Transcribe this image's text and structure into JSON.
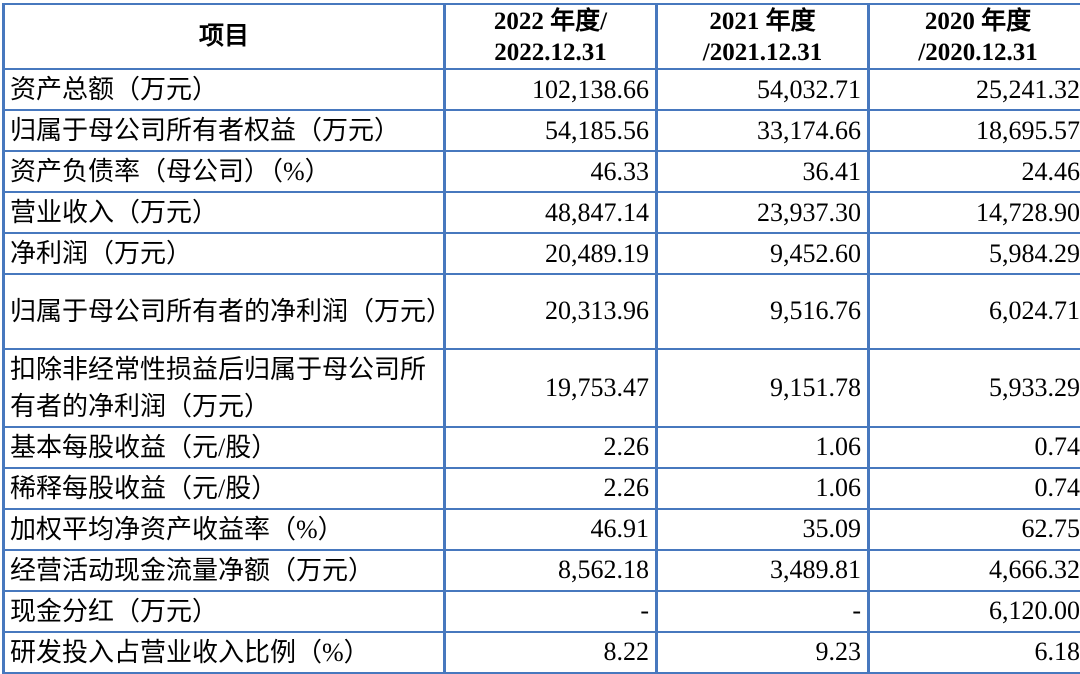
{
  "table": {
    "border_color": "#4778BE",
    "text_color": "#000000",
    "header": {
      "item": "项目",
      "periods": [
        {
          "line1": "2022 年度/",
          "line2": "2022.12.31"
        },
        {
          "line1": "2021 年度",
          "line2": "/2021.12.31"
        },
        {
          "line1": "2020 年度",
          "line2": "/2020.12.31"
        }
      ]
    },
    "rows": [
      {
        "label": "资产总额（万元）",
        "v2022": "102,138.66",
        "v2021": "54,032.71",
        "v2020": "25,241.32"
      },
      {
        "label": "归属于母公司所有者权益（万元）",
        "v2022": "54,185.56",
        "v2021": "33,174.66",
        "v2020": "18,695.57"
      },
      {
        "label": "资产负债率（母公司）（%）",
        "v2022": "46.33",
        "v2021": "36.41",
        "v2020": "24.46"
      },
      {
        "label": "营业收入（万元）",
        "v2022": "48,847.14",
        "v2021": "23,937.30",
        "v2020": "14,728.90"
      },
      {
        "label": "净利润（万元）",
        "v2022": "20,489.19",
        "v2021": "9,452.60",
        "v2020": "5,984.29"
      },
      {
        "label": "归属于母公司所有者的净利润（万元）",
        "v2022": "20,313.96",
        "v2021": "9,516.76",
        "v2020": "6,024.71"
      },
      {
        "label": "扣除非经常性损益后归属于母公司所有者的净利润（万元）",
        "v2022": "19,753.47",
        "v2021": "9,151.78",
        "v2020": "5,933.29"
      },
      {
        "label": "基本每股收益（元/股）",
        "v2022": "2.26",
        "v2021": "1.06",
        "v2020": "0.74"
      },
      {
        "label": "稀释每股收益（元/股）",
        "v2022": "2.26",
        "v2021": "1.06",
        "v2020": "0.74"
      },
      {
        "label": "加权平均净资产收益率（%）",
        "v2022": "46.91",
        "v2021": "35.09",
        "v2020": "62.75"
      },
      {
        "label": "经营活动现金流量净额（万元）",
        "v2022": "8,562.18",
        "v2021": "3,489.81",
        "v2020": "4,666.32"
      },
      {
        "label": "现金分红（万元）",
        "v2022": "-",
        "v2021": "-",
        "v2020": "6,120.00"
      },
      {
        "label": "研发投入占营业收入比例（%）",
        "v2022": "8.22",
        "v2021": "9.23",
        "v2020": "6.18"
      }
    ]
  }
}
